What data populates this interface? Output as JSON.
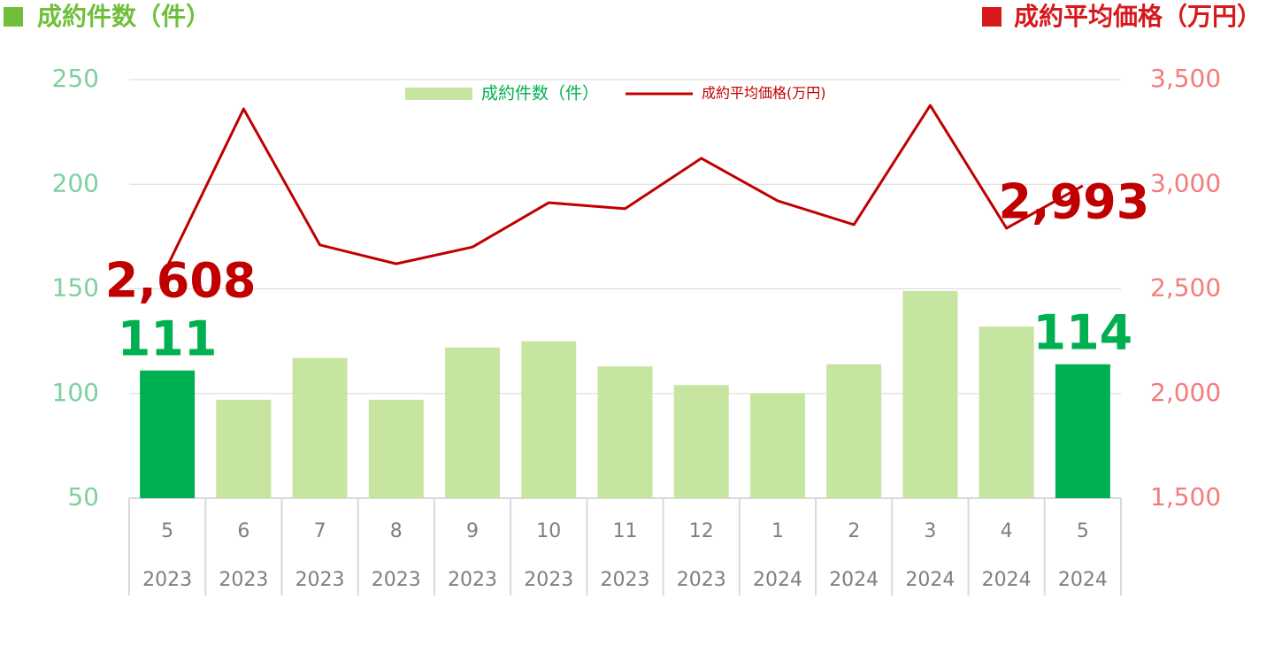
{
  "chart_data": {
    "type": "bar_line",
    "left_header": "成約件数（件）",
    "left_header_color": "#70bf3b",
    "right_header": "成約平均価格（万円）",
    "right_header_color": "#d7191c",
    "categories": [
      "5",
      "6",
      "7",
      "8",
      "9",
      "10",
      "11",
      "12",
      "1",
      "2",
      "3",
      "4",
      "5"
    ],
    "years": [
      "2023",
      "2023",
      "2023",
      "2023",
      "2023",
      "2023",
      "2023",
      "2023",
      "2024",
      "2024",
      "2024",
      "2024",
      "2024"
    ],
    "series": [
      {
        "name": "成約件数（件）",
        "type": "bar",
        "color": "#c5e5a0",
        "colors": [
          "#00b050",
          "#c5e5a0",
          "#c5e5a0",
          "#c5e5a0",
          "#c5e5a0",
          "#c5e5a0",
          "#c5e5a0",
          "#c5e5a0",
          "#c5e5a0",
          "#c5e5a0",
          "#c5e5a0",
          "#c5e5a0",
          "#00b050"
        ],
        "values": [
          111,
          97,
          117,
          97,
          122,
          125,
          113,
          104,
          100,
          114,
          149,
          132,
          114
        ],
        "value_labels": [
          "111",
          null,
          null,
          null,
          null,
          null,
          null,
          null,
          null,
          null,
          null,
          null,
          "114"
        ],
        "label_color": "#00b050"
      },
      {
        "name": "成約平均価格(万円)",
        "type": "line",
        "axis": "y2",
        "color": "#c00000",
        "values": [
          2608,
          3360,
          2710,
          2620,
          2700,
          2912,
          2883,
          3124,
          2921,
          2807,
          3377,
          2790,
          2993
        ],
        "value_labels": [
          "2,608",
          null,
          null,
          null,
          null,
          null,
          null,
          null,
          null,
          null,
          null,
          null,
          "2,993"
        ],
        "label_color": "#c00000"
      }
    ],
    "ylim": [
      50,
      250
    ],
    "yticks": [
      50,
      100,
      150,
      200,
      250
    ],
    "y_tick_color": "#7fd0a0",
    "y2lim": [
      1500,
      3500
    ],
    "y2ticks": [
      {
        "value": 1500,
        "label": "1,500"
      },
      {
        "value": 2000,
        "label": "2,000"
      },
      {
        "value": 2500,
        "label": "2,500"
      },
      {
        "value": 3000,
        "label": "3,000"
      },
      {
        "value": 3500,
        "label": "3,500"
      }
    ],
    "y2_tick_color": "#f47c7c",
    "grid": true,
    "legend": "top"
  }
}
